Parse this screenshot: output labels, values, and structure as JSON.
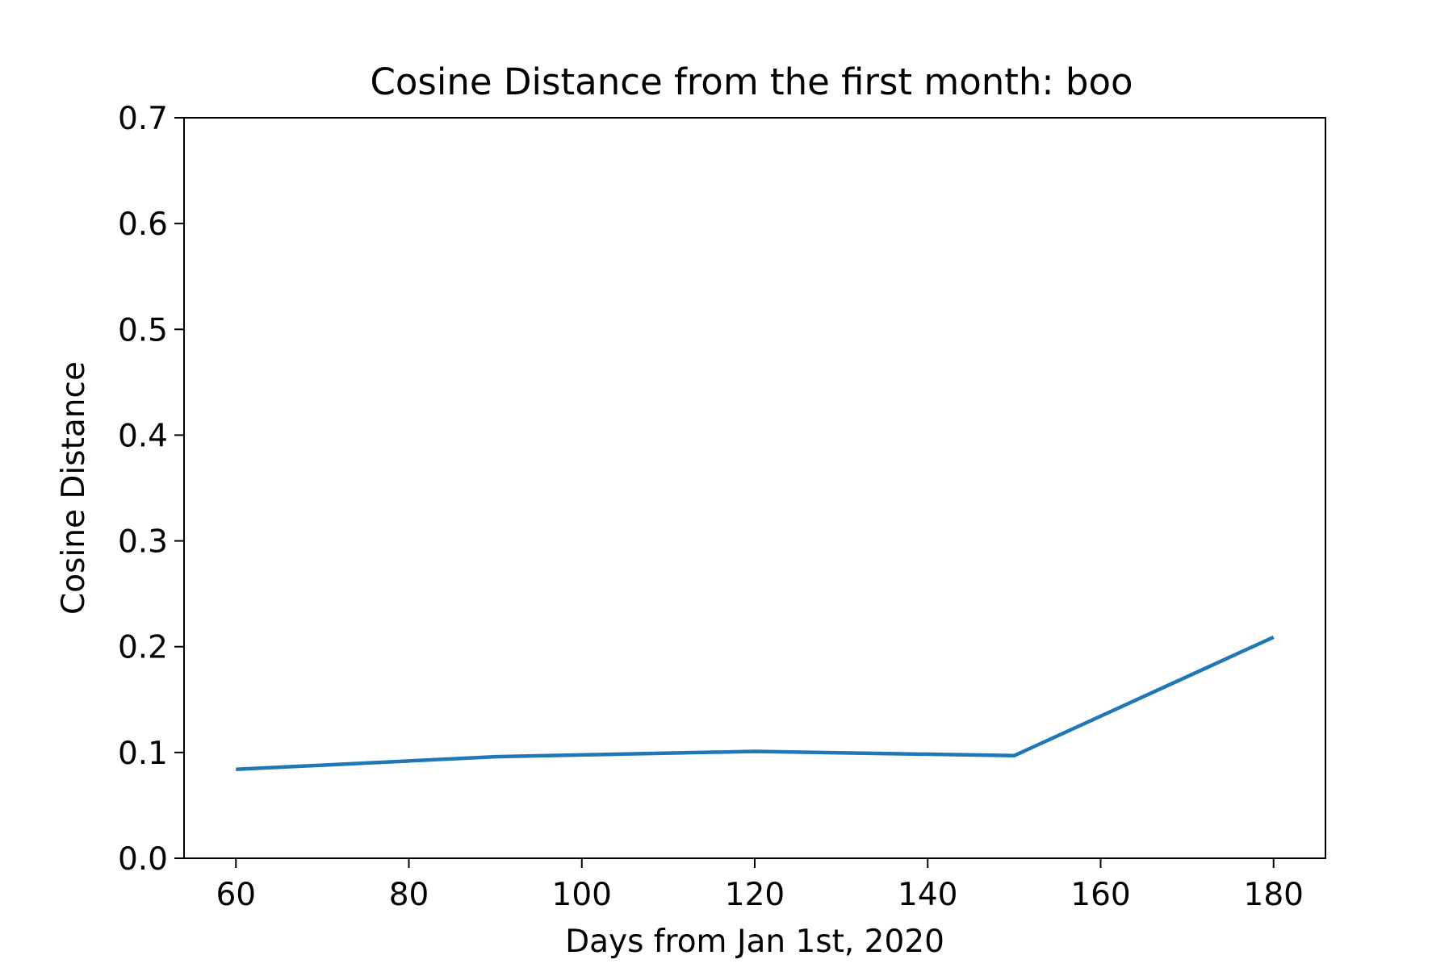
{
  "chart_data": {
    "type": "line",
    "title": "Cosine Distance from the first month: boo",
    "xlabel": "Days from Jan 1st, 2020",
    "ylabel": "Cosine Distance",
    "xlim": [
      54,
      186
    ],
    "ylim": [
      0.0,
      0.7
    ],
    "x_ticks": [
      60,
      80,
      100,
      120,
      140,
      160,
      180
    ],
    "y_ticks": [
      0.0,
      0.1,
      0.2,
      0.3,
      0.4,
      0.5,
      0.6,
      0.7
    ],
    "x_tick_labels": [
      "60",
      "80",
      "100",
      "120",
      "140",
      "160",
      "180"
    ],
    "y_tick_labels": [
      "0.0",
      "0.1",
      "0.2",
      "0.3",
      "0.4",
      "0.5",
      "0.6",
      "0.7"
    ],
    "grid": false,
    "series": [
      {
        "color": "#1f77b4",
        "x": [
          60,
          90,
          120,
          150,
          180
        ],
        "y": [
          0.084,
          0.096,
          0.101,
          0.097,
          0.209
        ]
      }
    ]
  }
}
